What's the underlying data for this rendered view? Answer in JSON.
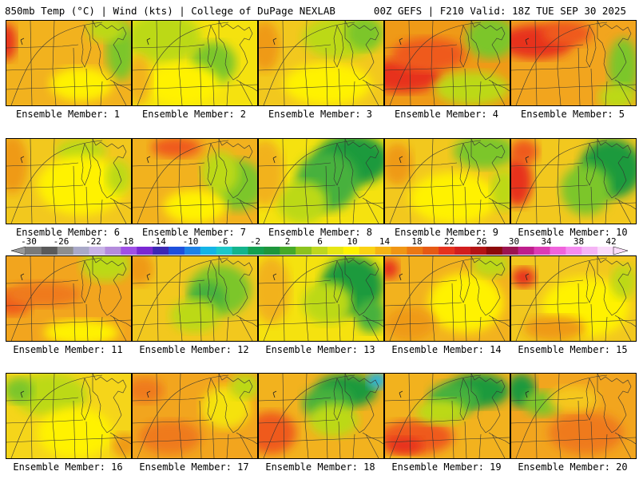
{
  "header": {
    "left": "850mb Temp (°C) | Wind (kts) | College of DuPage NEXLAB",
    "right": "00Z GEFS | F210 Valid: 18Z TUE SEP 30 2025"
  },
  "members": [
    {
      "label": "Ensemble Member: 1",
      "scene": {
        "base": "#f2b21e",
        "blobs": [
          [
            "#e7331c",
            0.0,
            0.25,
            0.08,
            0.22
          ],
          [
            "#7cc62b",
            0.92,
            0.35,
            0.12,
            0.35
          ],
          [
            "#bcd919",
            0.8,
            0.1,
            0.15,
            0.15
          ],
          [
            "#fff200",
            0.6,
            0.75,
            0.25,
            0.2
          ]
        ]
      }
    },
    {
      "label": "Ensemble Member: 2",
      "scene": {
        "base": "#f5e20f",
        "blobs": [
          [
            "#bcd919",
            0.25,
            0.2,
            0.3,
            0.3
          ],
          [
            "#7cc62b",
            0.65,
            0.5,
            0.18,
            0.25
          ],
          [
            "#fff200",
            0.4,
            0.75,
            0.3,
            0.25
          ],
          [
            "#f2b21e",
            0.05,
            0.7,
            0.1,
            0.3
          ]
        ]
      }
    },
    {
      "label": "Ensemble Member: 3",
      "scene": {
        "base": "#f2c81e",
        "blobs": [
          [
            "#bcd919",
            0.65,
            0.2,
            0.3,
            0.25
          ],
          [
            "#7cc62b",
            0.85,
            0.15,
            0.15,
            0.2
          ],
          [
            "#fff200",
            0.55,
            0.75,
            0.35,
            0.25
          ],
          [
            "#ef9a17",
            0.05,
            0.3,
            0.12,
            0.3
          ]
        ]
      }
    },
    {
      "label": "Ensemble Member: 4",
      "scene": {
        "base": "#ef9a17",
        "blobs": [
          [
            "#e7331c",
            0.15,
            0.65,
            0.3,
            0.2
          ],
          [
            "#ef5a1a",
            0.35,
            0.4,
            0.3,
            0.2
          ],
          [
            "#7cc62b",
            0.85,
            0.2,
            0.2,
            0.25
          ],
          [
            "#bcd919",
            0.7,
            0.8,
            0.3,
            0.2
          ]
        ]
      }
    },
    {
      "label": "Ensemble Member: 5",
      "scene": {
        "base": "#f2a51e",
        "blobs": [
          [
            "#e7331c",
            0.2,
            0.25,
            0.3,
            0.2
          ],
          [
            "#ef5a1a",
            0.45,
            0.15,
            0.2,
            0.15
          ],
          [
            "#7cc62b",
            0.9,
            0.55,
            0.12,
            0.35
          ],
          [
            "#bcd919",
            0.85,
            0.9,
            0.15,
            0.15
          ]
        ]
      }
    },
    {
      "label": "Ensemble Member: 6",
      "scene": {
        "base": "#f2c81e",
        "blobs": [
          [
            "#bcd919",
            0.6,
            0.15,
            0.2,
            0.15
          ],
          [
            "#fff200",
            0.6,
            0.55,
            0.35,
            0.35
          ],
          [
            "#ef9a17",
            0.05,
            0.3,
            0.12,
            0.35
          ],
          [
            "#bcd919",
            0.9,
            0.45,
            0.1,
            0.2
          ]
        ]
      }
    },
    {
      "label": "Ensemble Member: 7",
      "scene": {
        "base": "#f2b21e",
        "blobs": [
          [
            "#7cc62b",
            0.85,
            0.55,
            0.2,
            0.3
          ],
          [
            "#bcd919",
            0.7,
            0.4,
            0.15,
            0.25
          ],
          [
            "#ef5a1a",
            0.35,
            0.1,
            0.2,
            0.12
          ],
          [
            "#fff200",
            0.5,
            0.8,
            0.25,
            0.2
          ]
        ]
      }
    },
    {
      "label": "Ensemble Member: 8",
      "scene": {
        "base": "#f5e20f",
        "blobs": [
          [
            "#1f9a3c",
            0.75,
            0.25,
            0.3,
            0.3
          ],
          [
            "#47b13c",
            0.55,
            0.5,
            0.25,
            0.35
          ],
          [
            "#bcd919",
            0.35,
            0.75,
            0.2,
            0.25
          ],
          [
            "#f2b21e",
            0.05,
            0.4,
            0.15,
            0.4
          ]
        ]
      }
    },
    {
      "label": "Ensemble Member: 9",
      "scene": {
        "base": "#f2c81e",
        "blobs": [
          [
            "#7cc62b",
            0.8,
            0.15,
            0.25,
            0.2
          ],
          [
            "#ef9a17",
            0.1,
            0.3,
            0.12,
            0.25
          ],
          [
            "#fff200",
            0.55,
            0.7,
            0.35,
            0.3
          ],
          [
            "#bcd919",
            0.95,
            0.6,
            0.1,
            0.25
          ]
        ]
      }
    },
    {
      "label": "Ensemble Member: 10",
      "scene": {
        "base": "#f2c81e",
        "blobs": [
          [
            "#e7331c",
            0.05,
            0.5,
            0.12,
            0.3
          ],
          [
            "#ef5a1a",
            0.1,
            0.15,
            0.12,
            0.15
          ],
          [
            "#1f9a3c",
            0.8,
            0.35,
            0.25,
            0.35
          ],
          [
            "#7cc62b",
            0.6,
            0.6,
            0.2,
            0.3
          ]
        ]
      }
    },
    {
      "label": "Ensemble Member: 11",
      "scene": {
        "base": "#f2a51e",
        "blobs": [
          [
            "#ef5a1a",
            0.05,
            0.55,
            0.15,
            0.15
          ],
          [
            "#ef7a1a",
            0.3,
            0.45,
            0.3,
            0.15
          ],
          [
            "#bcd919",
            0.8,
            0.1,
            0.2,
            0.2
          ],
          [
            "#fff200",
            0.6,
            0.9,
            0.3,
            0.15
          ]
        ]
      }
    },
    {
      "label": "Ensemble Member: 12",
      "scene": {
        "base": "#f2c81e",
        "blobs": [
          [
            "#7cc62b",
            0.7,
            0.4,
            0.25,
            0.3
          ],
          [
            "#47b13c",
            0.6,
            0.5,
            0.15,
            0.2
          ],
          [
            "#bcd919",
            0.5,
            0.7,
            0.2,
            0.2
          ],
          [
            "#ef9a17",
            0.05,
            0.15,
            0.12,
            0.2
          ]
        ]
      }
    },
    {
      "label": "Ensemble Member: 13",
      "scene": {
        "base": "#f5e20f",
        "blobs": [
          [
            "#1f9a3c",
            0.75,
            0.35,
            0.25,
            0.35
          ],
          [
            "#47b13c",
            0.9,
            0.7,
            0.12,
            0.2
          ],
          [
            "#bcd919",
            0.55,
            0.55,
            0.2,
            0.25
          ],
          [
            "#f2b21e",
            0.1,
            0.4,
            0.15,
            0.4
          ]
        ]
      }
    },
    {
      "label": "Ensemble Member: 14",
      "scene": {
        "base": "#f2b21e",
        "blobs": [
          [
            "#e7331c",
            0.03,
            0.15,
            0.08,
            0.12
          ],
          [
            "#fff200",
            0.65,
            0.55,
            0.3,
            0.35
          ],
          [
            "#bcd919",
            0.85,
            0.1,
            0.15,
            0.15
          ],
          [
            "#ef9a17",
            0.2,
            0.8,
            0.2,
            0.2
          ]
        ]
      }
    },
    {
      "label": "Ensemble Member: 15",
      "scene": {
        "base": "#f2c81e",
        "blobs": [
          [
            "#e7331c",
            0.1,
            0.25,
            0.1,
            0.12
          ],
          [
            "#fff200",
            0.6,
            0.6,
            0.35,
            0.35
          ],
          [
            "#ef9a17",
            0.35,
            0.85,
            0.25,
            0.15
          ],
          [
            "#bcd919",
            0.9,
            0.3,
            0.1,
            0.2
          ]
        ]
      }
    },
    {
      "label": "Ensemble Member: 16",
      "scene": {
        "base": "#f5d51a",
        "blobs": [
          [
            "#bcd919",
            0.35,
            0.25,
            0.3,
            0.25
          ],
          [
            "#7cc62b",
            0.1,
            0.2,
            0.12,
            0.15
          ],
          [
            "#fff200",
            0.55,
            0.7,
            0.3,
            0.3
          ],
          [
            "#ef9a17",
            0.95,
            0.85,
            0.1,
            0.15
          ]
        ]
      }
    },
    {
      "label": "Ensemble Member: 17",
      "scene": {
        "base": "#f2a51e",
        "blobs": [
          [
            "#ef7a1a",
            0.1,
            0.2,
            0.15,
            0.15
          ],
          [
            "#ef7a1a",
            0.3,
            0.75,
            0.25,
            0.2
          ],
          [
            "#f5e20f",
            0.75,
            0.4,
            0.2,
            0.25
          ],
          [
            "#bcd919",
            0.9,
            0.15,
            0.12,
            0.15
          ]
        ]
      }
    },
    {
      "label": "Ensemble Member: 18",
      "scene": {
        "base": "#f2b21e",
        "blobs": [
          [
            "#1f9a3c",
            0.7,
            0.2,
            0.25,
            0.2
          ],
          [
            "#1ab4e6",
            0.95,
            0.08,
            0.08,
            0.1
          ],
          [
            "#47b13c",
            0.55,
            0.35,
            0.2,
            0.2
          ],
          [
            "#ef5a1a",
            0.1,
            0.7,
            0.2,
            0.25
          ],
          [
            "#bcd919",
            0.6,
            0.55,
            0.2,
            0.2
          ]
        ]
      }
    },
    {
      "label": "Ensemble Member: 19",
      "scene": {
        "base": "#f2b21e",
        "blobs": [
          [
            "#1f9a3c",
            0.75,
            0.2,
            0.25,
            0.2
          ],
          [
            "#47b13c",
            0.55,
            0.3,
            0.2,
            0.2
          ],
          [
            "#ef5a1a",
            0.25,
            0.75,
            0.3,
            0.2
          ],
          [
            "#e7331c",
            0.15,
            0.85,
            0.15,
            0.1
          ],
          [
            "#bcd919",
            0.45,
            0.45,
            0.2,
            0.15
          ]
        ]
      }
    },
    {
      "label": "Ensemble Member: 20",
      "scene": {
        "base": "#f2a51e",
        "blobs": [
          [
            "#1f9a3c",
            0.08,
            0.2,
            0.12,
            0.2
          ],
          [
            "#7cc62b",
            0.25,
            0.35,
            0.15,
            0.15
          ],
          [
            "#ef7a1a",
            0.6,
            0.7,
            0.3,
            0.25
          ],
          [
            "#f5c81e",
            0.5,
            0.3,
            0.2,
            0.15
          ]
        ]
      }
    }
  ],
  "colorbar": {
    "tick_labels": [
      "-30",
      "-26",
      "-22",
      "-18",
      "-14",
      "-10",
      "-6",
      "-2",
      "2",
      "6",
      "10",
      "14",
      "18",
      "22",
      "26",
      "30",
      "34",
      "38",
      "42"
    ],
    "colors": [
      "#7a7a7a",
      "#5a5a5a",
      "#8e8e8e",
      "#a9a9c8",
      "#c8b4e6",
      "#b48cdc",
      "#a050e6",
      "#7a28d2",
      "#3c28b4",
      "#1e50dc",
      "#1e82e6",
      "#14b4e6",
      "#1ec8c8",
      "#14b48c",
      "#14a050",
      "#1e963c",
      "#46aa28",
      "#8cc31e",
      "#bed71e",
      "#e6e614",
      "#fff200",
      "#fad214",
      "#f5b414",
      "#f09614",
      "#eb7814",
      "#e65a14",
      "#e6321e",
      "#d21e1e",
      "#b41414",
      "#8c0a0a",
      "#9b1450",
      "#be1e8c",
      "#dc3cb4",
      "#f064dc",
      "#f58cf0",
      "#f5b4f5",
      "#fadcfa"
    ]
  }
}
